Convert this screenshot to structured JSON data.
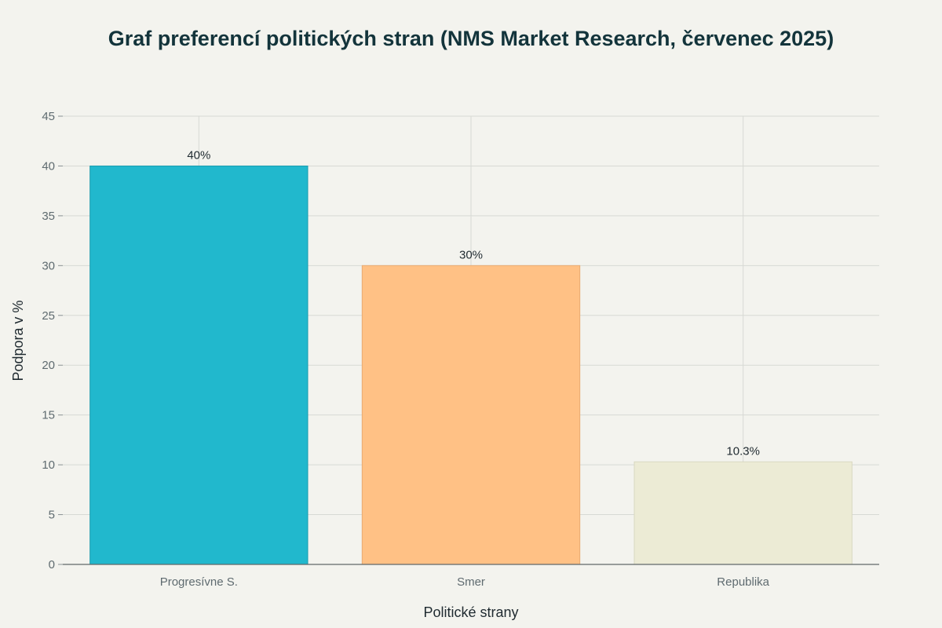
{
  "chart_data": {
    "type": "bar",
    "title": "Graf preferencí politických stran (NMS Market Research, červenec 2025)",
    "xlabel": "Politické strany",
    "ylabel": "Podpora v %",
    "categories": [
      "Progresívne S.",
      "Smer",
      "Republika"
    ],
    "values": [
      40,
      30,
      10.3
    ],
    "data_labels": [
      "40%",
      "30%",
      "10.3%"
    ],
    "ylim": [
      0,
      45
    ],
    "yticks": [
      0,
      5,
      10,
      15,
      20,
      25,
      30,
      35,
      40,
      45
    ],
    "ytick_labels": [
      "0",
      "5",
      "10",
      "15",
      "20",
      "25",
      "30",
      "35",
      "40",
      "45"
    ],
    "grid": true,
    "colors": [
      "#21b8cd",
      "#ffc185",
      "#ecebd5"
    ],
    "bar_outline_colors": [
      "#1a9cae",
      "#e8aa72",
      "#d9d8c1"
    ]
  }
}
